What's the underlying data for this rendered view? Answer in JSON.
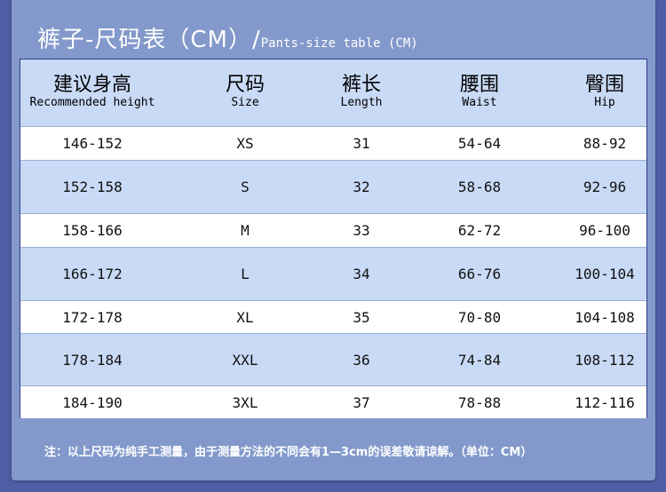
{
  "title": {
    "zh": "裤子-尺码表（CM）/",
    "en": "Pants-size table (CM)"
  },
  "colors": {
    "background": "#4f5ea6",
    "panel": "#8399cb",
    "header_row": "#c9daf6",
    "alt_row": "#c9daf6",
    "row": "#ffffff"
  },
  "headers": [
    {
      "zh": "建议身高",
      "en": "Recommended height"
    },
    {
      "zh": "尺码",
      "en": "Size"
    },
    {
      "zh": "裤长",
      "en": "Length"
    },
    {
      "zh": "腰围",
      "en": "Waist"
    },
    {
      "zh": "臀围",
      "en": "Hip"
    }
  ],
  "rows": [
    [
      "146-152",
      "XS",
      "31",
      "54-64",
      "88-92"
    ],
    [
      "152-158",
      "S",
      "32",
      "58-68",
      "92-96"
    ],
    [
      "158-166",
      "M",
      "33",
      "62-72",
      "96-100"
    ],
    [
      "166-172",
      "L",
      "34",
      "66-76",
      "100-104"
    ],
    [
      "172-178",
      "XL",
      "35",
      "70-80",
      "104-108"
    ],
    [
      "178-184",
      "XXL",
      "36",
      "74-84",
      "108-112"
    ],
    [
      "184-190",
      "3XL",
      "37",
      "78-88",
      "112-116"
    ]
  ],
  "note": "注：以上尺码为纯手工测量，由于测量方法的不同会有1—3cm的误差敬请谅解。（单位：CM）"
}
